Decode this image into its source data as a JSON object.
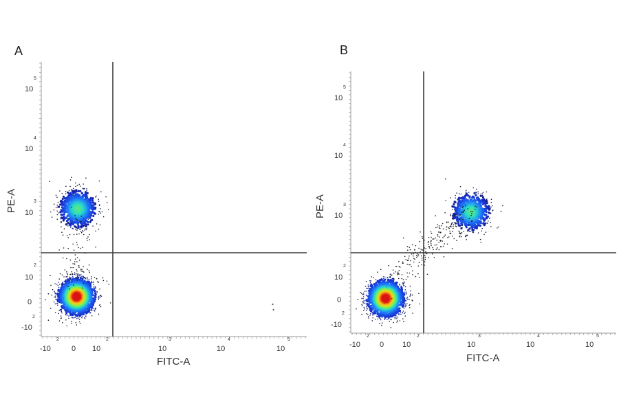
{
  "chart_data": [
    {
      "type": "scatter",
      "panel_label": "A",
      "xlabel": "FITC-A",
      "ylabel": "PE-A",
      "x_scale": "biexponential",
      "y_scale": "biexponential",
      "x_ticks": [
        {
          "base": "-10",
          "exp": "2"
        },
        {
          "base": "0",
          "exp": ""
        },
        {
          "base": "10",
          "exp": "2"
        },
        {
          "base": "10",
          "exp": "3"
        },
        {
          "base": "10",
          "exp": "4"
        },
        {
          "base": "10",
          "exp": "5"
        }
      ],
      "y_ticks": [
        {
          "base": "-10",
          "exp": "2"
        },
        {
          "base": "0",
          "exp": ""
        },
        {
          "base": "10",
          "exp": "2"
        },
        {
          "base": "10",
          "exp": "3"
        },
        {
          "base": "10",
          "exp": "4"
        },
        {
          "base": "10",
          "exp": "5"
        }
      ],
      "gates": {
        "x": 200,
        "y": 800
      },
      "populations": [
        {
          "name": "",
          "center": [
            10,
            20
          ],
          "count": 2000
        },
        {
          "name": "",
          "center": [
            15,
            1100
          ],
          "count": 950
        }
      ],
      "outliers": [
        [
          70000,
          -100
        ],
        [
          72000,
          -230
        ]
      ]
    },
    {
      "type": "scatter",
      "panel_label": "B",
      "xlabel": "FITC-A",
      "ylabel": "PE-A",
      "x_scale": "biexponential",
      "y_scale": "biexponential",
      "x_ticks": [
        {
          "base": "-10",
          "exp": "2"
        },
        {
          "base": "0",
          "exp": ""
        },
        {
          "base": "10",
          "exp": "2"
        },
        {
          "base": "10",
          "exp": "3"
        },
        {
          "base": "10",
          "exp": "4"
        },
        {
          "base": "10",
          "exp": "5"
        }
      ],
      "y_ticks": [
        {
          "base": "-10",
          "exp": "2"
        },
        {
          "base": "0",
          "exp": ""
        },
        {
          "base": "10",
          "exp": "2"
        },
        {
          "base": "10",
          "exp": "3"
        },
        {
          "base": "10",
          "exp": "4"
        },
        {
          "base": "10",
          "exp": "5"
        }
      ],
      "gates": {
        "x": 200,
        "y": 800
      },
      "populations": [
        {
          "name": "",
          "center": [
            10,
            5
          ],
          "count": 2100
        },
        {
          "name": "",
          "center": [
            900,
            1100
          ],
          "count": 850
        }
      ],
      "outliers": []
    }
  ]
}
